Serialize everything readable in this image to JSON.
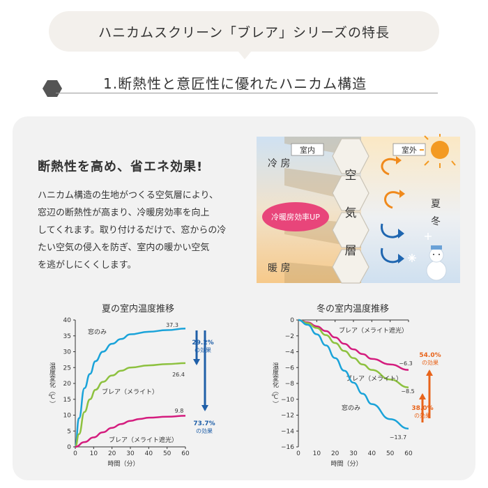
{
  "header": {
    "title": "ハニカムスクリーン「ブレア」シリーズの特長",
    "section_title": "1.断熱性と意匠性に優れたハニカム構造"
  },
  "intro": {
    "heading": "断熱性を高め、省エネ効果!",
    "body_lines": [
      "ハニカム構造の生地がつくる空気層により、",
      "窓辺の断熱性が高まり、冷暖房効率を向上",
      "してくれます。取り付けるだけで、窓からの冷",
      "たい空気の侵入を防ぎ、室内の暖かい空気",
      "を逃がしにくくします。"
    ]
  },
  "illustration": {
    "indoor_label": "室内",
    "outdoor_label": "室外",
    "cooling_label": "冷 房",
    "heating_label": "暖 房",
    "air_layer_chars": [
      "空",
      "気",
      "層"
    ],
    "efficiency_badge": "冷暖房効率UP",
    "summer_label": "夏",
    "winter_label": "冬",
    "icons": [
      "sun-icon",
      "snowman-icon",
      "snowflake-icon",
      "warm-arrow-icon",
      "cold-arrow-icon"
    ]
  },
  "chart_data": [
    {
      "type": "line",
      "title": "夏の室内温度推移",
      "xlabel": "時間（分）",
      "ylabel": "温度変化（℃）",
      "xlim": [
        0,
        60
      ],
      "ylim": [
        0,
        40
      ],
      "xticks": [
        0,
        10,
        20,
        30,
        40,
        50,
        60
      ],
      "yticks": [
        0,
        5,
        10,
        15,
        20,
        25,
        30,
        35,
        40
      ],
      "series": [
        {
          "name": "窓のみ",
          "color": "#1aa3d9",
          "end_label": "37.3",
          "x": [
            0,
            2,
            5,
            8,
            11,
            15,
            20,
            25,
            30,
            40,
            50,
            60
          ],
          "y": [
            0,
            9,
            18.5,
            23,
            27,
            30,
            32.5,
            34,
            35.5,
            36.3,
            36.8,
            37.3
          ]
        },
        {
          "name": "ブレア（メライト）",
          "color": "#8dc13f",
          "end_label": "26.4",
          "x": [
            0,
            2,
            5,
            8,
            11,
            15,
            20,
            25,
            30,
            40,
            50,
            60
          ],
          "y": [
            0,
            4,
            11,
            15,
            18,
            20.5,
            22.5,
            24,
            25,
            25.7,
            26.1,
            26.4
          ]
        },
        {
          "name": "ブレア（メライト遮光）",
          "color": "#d41c7e",
          "end_label": "9.8",
          "x": [
            0,
            5,
            10,
            15,
            20,
            25,
            30,
            35,
            40,
            50,
            60
          ],
          "y": [
            0,
            1.5,
            3,
            4.6,
            6,
            7.2,
            8.2,
            8.8,
            9.2,
            9.5,
            9.8
          ]
        }
      ],
      "annotations": [
        {
          "value": "29.2%",
          "text": "の効果",
          "color": "#1f5fa8"
        },
        {
          "value": "73.7%",
          "text": "の効果",
          "color": "#1f5fa8"
        }
      ]
    },
    {
      "type": "line",
      "title": "冬の室内温度推移",
      "xlabel": "時間（分）",
      "ylabel": "温度変化（℃）",
      "xlim": [
        0,
        60
      ],
      "ylim": [
        -16,
        0
      ],
      "xticks": [
        0,
        10,
        20,
        30,
        40,
        50,
        60
      ],
      "yticks": [
        0,
        -2,
        -4,
        -6,
        -8,
        -10,
        -12,
        -14,
        -16
      ],
      "series": [
        {
          "name": "ブレア（メライト遮光）",
          "color": "#d41c7e",
          "end_label": "−6.3",
          "x": [
            0,
            5,
            10,
            15,
            20,
            25,
            30,
            35,
            40,
            50,
            60
          ],
          "y": [
            0,
            -0.3,
            -0.8,
            -1.4,
            -2.2,
            -3.0,
            -3.7,
            -4.3,
            -4.9,
            -5.6,
            -6.3
          ]
        },
        {
          "name": "ブレア（メライト）",
          "color": "#8dc13f",
          "end_label": "−8.5",
          "x": [
            0,
            5,
            10,
            15,
            20,
            25,
            30,
            35,
            40,
            50,
            60
          ],
          "y": [
            0,
            -0.4,
            -1.0,
            -1.9,
            -2.9,
            -3.9,
            -4.8,
            -5.6,
            -6.3,
            -7.5,
            -8.5
          ]
        },
        {
          "name": "窓のみ",
          "color": "#1aa3d9",
          "end_label": "−13.7",
          "x": [
            0,
            5,
            10,
            15,
            20,
            25,
            30,
            35,
            40,
            50,
            60
          ],
          "y": [
            0,
            -0.6,
            -1.8,
            -3.2,
            -4.8,
            -6.4,
            -7.9,
            -9.3,
            -10.6,
            -12.5,
            -13.7
          ]
        }
      ],
      "annotations": [
        {
          "value": "54.0%",
          "text": "の効果",
          "color": "#e8641b"
        },
        {
          "value": "38.0%",
          "text": "の効果",
          "color": "#e8641b"
        }
      ]
    }
  ]
}
